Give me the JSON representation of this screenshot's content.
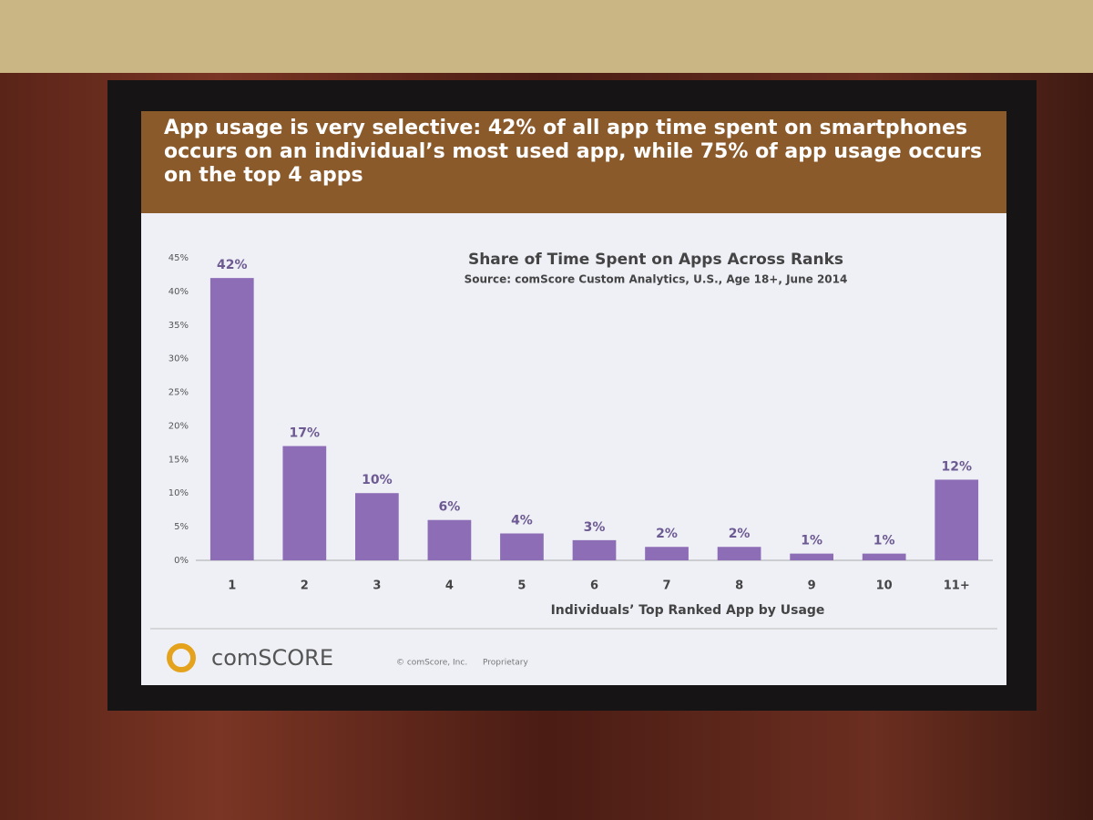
{
  "headline": "App usage is very selective: 42% of all app time spent on smartphones occurs on an individual’s most used app, while 75% of app usage occurs on the top 4 apps",
  "logo": "comSCORE",
  "copyright": "© comScore, Inc.",
  "proprietary": "Proprietary",
  "chart_data": {
    "type": "bar",
    "title": "Share of Time Spent on Apps Across Ranks",
    "subtitle": "Source: comScore Custom Analytics, U.S., Age 18+, June 2014",
    "x_label": "Individuals’ Top Ranked App by Usage",
    "categories": [
      "1",
      "2",
      "3",
      "4",
      "5",
      "6",
      "7",
      "8",
      "9",
      "10",
      "11+"
    ],
    "values": [
      42,
      17,
      10,
      6,
      4,
      3,
      2,
      2,
      1,
      1,
      12
    ],
    "value_labels": [
      "42%",
      "17%",
      "10%",
      "6%",
      "4%",
      "3%",
      "2%",
      "2%",
      "1%",
      "1%",
      "12%"
    ],
    "color": "#8e6db7",
    "ylim": [
      0,
      45
    ],
    "yticks": [
      {
        "value": 0,
        "label": "0%"
      },
      {
        "value": 5,
        "label": "5%"
      },
      {
        "value": 10,
        "label": "10%"
      },
      {
        "value": 15,
        "label": "15%"
      },
      {
        "value": 20,
        "label": "20%"
      },
      {
        "value": 25,
        "label": "25%"
      },
      {
        "value": 30,
        "label": "30%"
      },
      {
        "value": 35,
        "label": "35%"
      },
      {
        "value": 40,
        "label": "40%"
      },
      {
        "value": 45,
        "label": "45%"
      }
    ],
    "grid": false
  }
}
